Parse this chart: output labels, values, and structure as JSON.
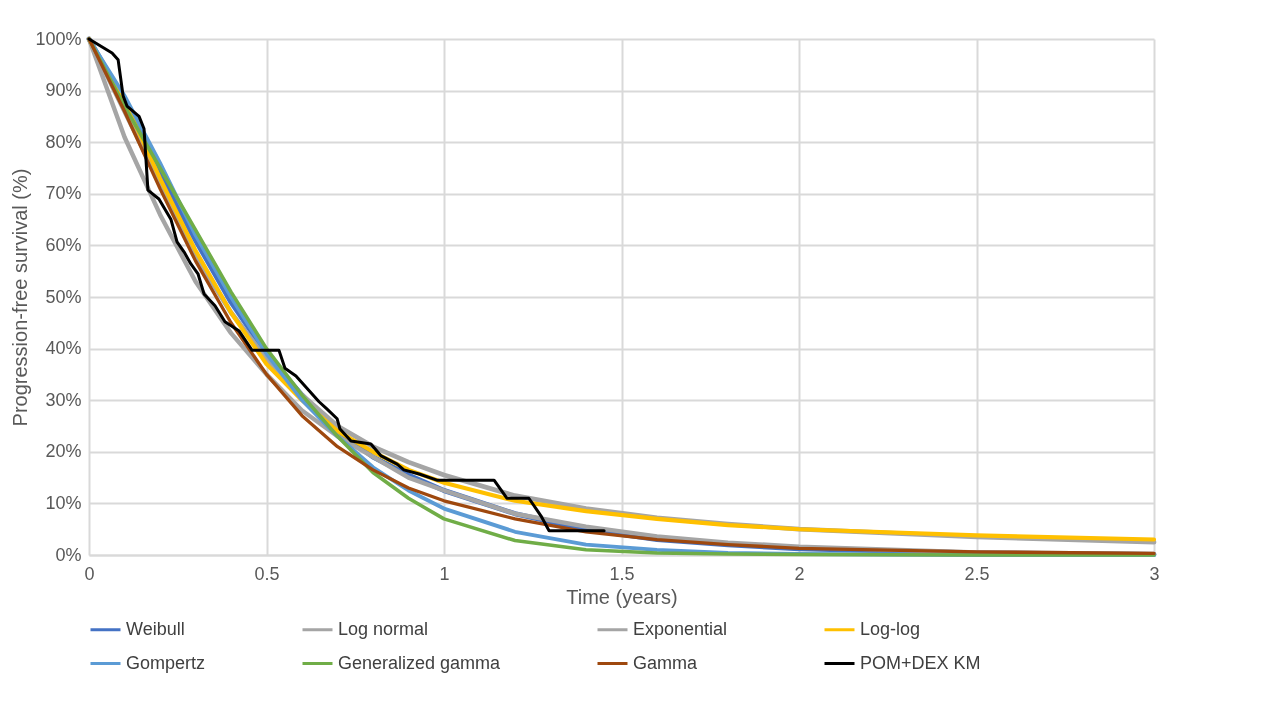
{
  "chart_data": {
    "type": "line",
    "xlabel": "Time (years)",
    "ylabel": "Progression-free survival (%)",
    "xlim": [
      0,
      3
    ],
    "xticks": [
      0,
      0.5,
      1,
      1.5,
      2,
      2.5,
      3
    ],
    "ylim": [
      0,
      100
    ],
    "yticks": [
      {
        "value": 0,
        "label": "0%"
      },
      {
        "value": 10,
        "label": "10%"
      },
      {
        "value": 20,
        "label": "20%"
      },
      {
        "value": 30,
        "label": "30%"
      },
      {
        "value": 40,
        "label": "40%"
      },
      {
        "value": 50,
        "label": "50%"
      },
      {
        "value": 60,
        "label": "60%"
      },
      {
        "value": 70,
        "label": "70%"
      },
      {
        "value": 80,
        "label": "80%"
      },
      {
        "value": 90,
        "label": "90%"
      },
      {
        "value": 100,
        "label": "100%"
      }
    ],
    "grid": true,
    "legend": "bottom",
    "marker": "none",
    "line_style": "solid",
    "x": [
      0,
      0.1,
      0.2,
      0.3,
      0.4,
      0.5,
      0.6,
      0.7,
      0.8,
      0.9,
      1,
      1.2,
      1.4,
      1.6,
      1.8,
      2,
      2.5,
      3
    ],
    "series": [
      {
        "name": "Weibull",
        "color": "#4472c4",
        "values": [
          100,
          88,
          74,
          61,
          49,
          39,
          31,
          24,
          19,
          15.5,
          12.5,
          8,
          5,
          3,
          2,
          1.2,
          0.4,
          0.1
        ]
      },
      {
        "name": "Log normal",
        "color": "#a5a5a5",
        "values": [
          100,
          86,
          72,
          58,
          47,
          38,
          31,
          25,
          21,
          18,
          15.5,
          11.5,
          9,
          7.2,
          6,
          5,
          3.5,
          2.5
        ]
      },
      {
        "name": "Exponential",
        "color": "#a5a5a5",
        "values": [
          100,
          81,
          66,
          53,
          43,
          35,
          28,
          23,
          19,
          15,
          12.5,
          8,
          5.5,
          3.6,
          2.4,
          1.6,
          0.5,
          0.2
        ]
      },
      {
        "name": "Log-log",
        "color": "#ffc000",
        "values": [
          100,
          88,
          73,
          59,
          47,
          37,
          30,
          24,
          20,
          16.5,
          14,
          10.5,
          8.5,
          7,
          5.8,
          5,
          3.8,
          3
        ]
      },
      {
        "name": "Gompertz",
        "color": "#5b9bd5",
        "values": [
          100,
          89,
          76,
          62,
          50,
          39,
          30,
          23,
          17,
          12.5,
          9,
          4.5,
          2,
          1,
          0.4,
          0.2,
          0,
          0
        ]
      },
      {
        "name": "Generalized gamma",
        "color": "#70ad47",
        "values": [
          100,
          87,
          75,
          63,
          51,
          40,
          31,
          23,
          16,
          11,
          7,
          2.8,
          1,
          0.4,
          0.2,
          0.1,
          0,
          0
        ]
      },
      {
        "name": "Gamma",
        "color": "#9e480e",
        "values": [
          100,
          86,
          71,
          57,
          45,
          35,
          27,
          21,
          16.5,
          13,
          10.5,
          7,
          4.5,
          3,
          2,
          1.3,
          0.6,
          0.3
        ]
      },
      {
        "name": "POM+DEX KM",
        "color": "#000000",
        "x": [
          0,
          0.065,
          0.082,
          0.096,
          0.107,
          0.141,
          0.155,
          0.166,
          0.197,
          0.231,
          0.248,
          0.268,
          0.287,
          0.307,
          0.324,
          0.355,
          0.383,
          0.423,
          0.459,
          0.535,
          0.552,
          0.583,
          0.648,
          0.67,
          0.699,
          0.707,
          0.738,
          0.794,
          0.823,
          0.868,
          0.887,
          0.93,
          0.98,
          1.141,
          1.177,
          1.239,
          1.273,
          1.296,
          1.451
        ],
        "values": [
          100,
          97.3,
          96,
          89,
          87,
          85,
          82.6,
          70.7,
          69,
          65,
          60.7,
          58.7,
          56.4,
          54.5,
          50.6,
          48.3,
          45.2,
          43.4,
          39.7,
          39.7,
          36.2,
          34.7,
          29.7,
          28.3,
          26.4,
          24.4,
          22.1,
          21.5,
          19.2,
          17.6,
          16.5,
          15.7,
          14.5,
          14.5,
          11,
          11,
          7.6,
          4.7,
          4.7
        ]
      }
    ]
  }
}
